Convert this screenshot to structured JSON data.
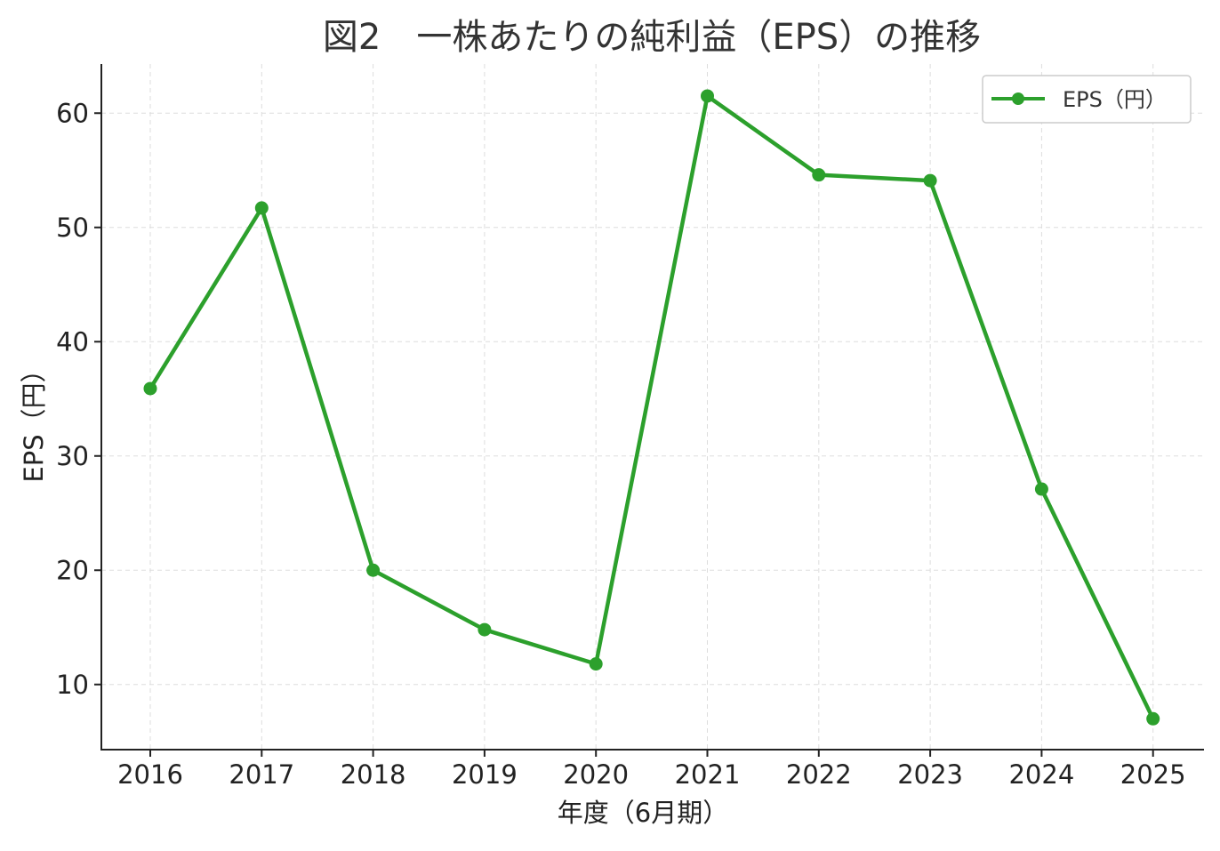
{
  "colors": {
    "series": "#2ca02c",
    "axis": "#222222",
    "grid": "#dddddd",
    "legend_border": "#cccccc",
    "background": "#ffffff"
  },
  "chart_data": {
    "type": "line",
    "title": "図2　一株あたりの純利益（EPS）の推移",
    "xlabel": "年度（6月期）",
    "ylabel": "EPS（円）",
    "categories": [
      "2016",
      "2017",
      "2018",
      "2019",
      "2020",
      "2021",
      "2022",
      "2023",
      "2024",
      "2025"
    ],
    "series": [
      {
        "name": "EPS（円）",
        "values": [
          35.9,
          51.7,
          20.0,
          14.8,
          11.8,
          61.5,
          54.6,
          54.1,
          27.1,
          7.0
        ]
      }
    ],
    "yticks": [
      10,
      20,
      30,
      40,
      50,
      60
    ],
    "ylim": [
      4.3,
      64.3
    ],
    "marker": "circle",
    "grid": true,
    "grid_style": "dashed",
    "legend_position": "top-right"
  }
}
